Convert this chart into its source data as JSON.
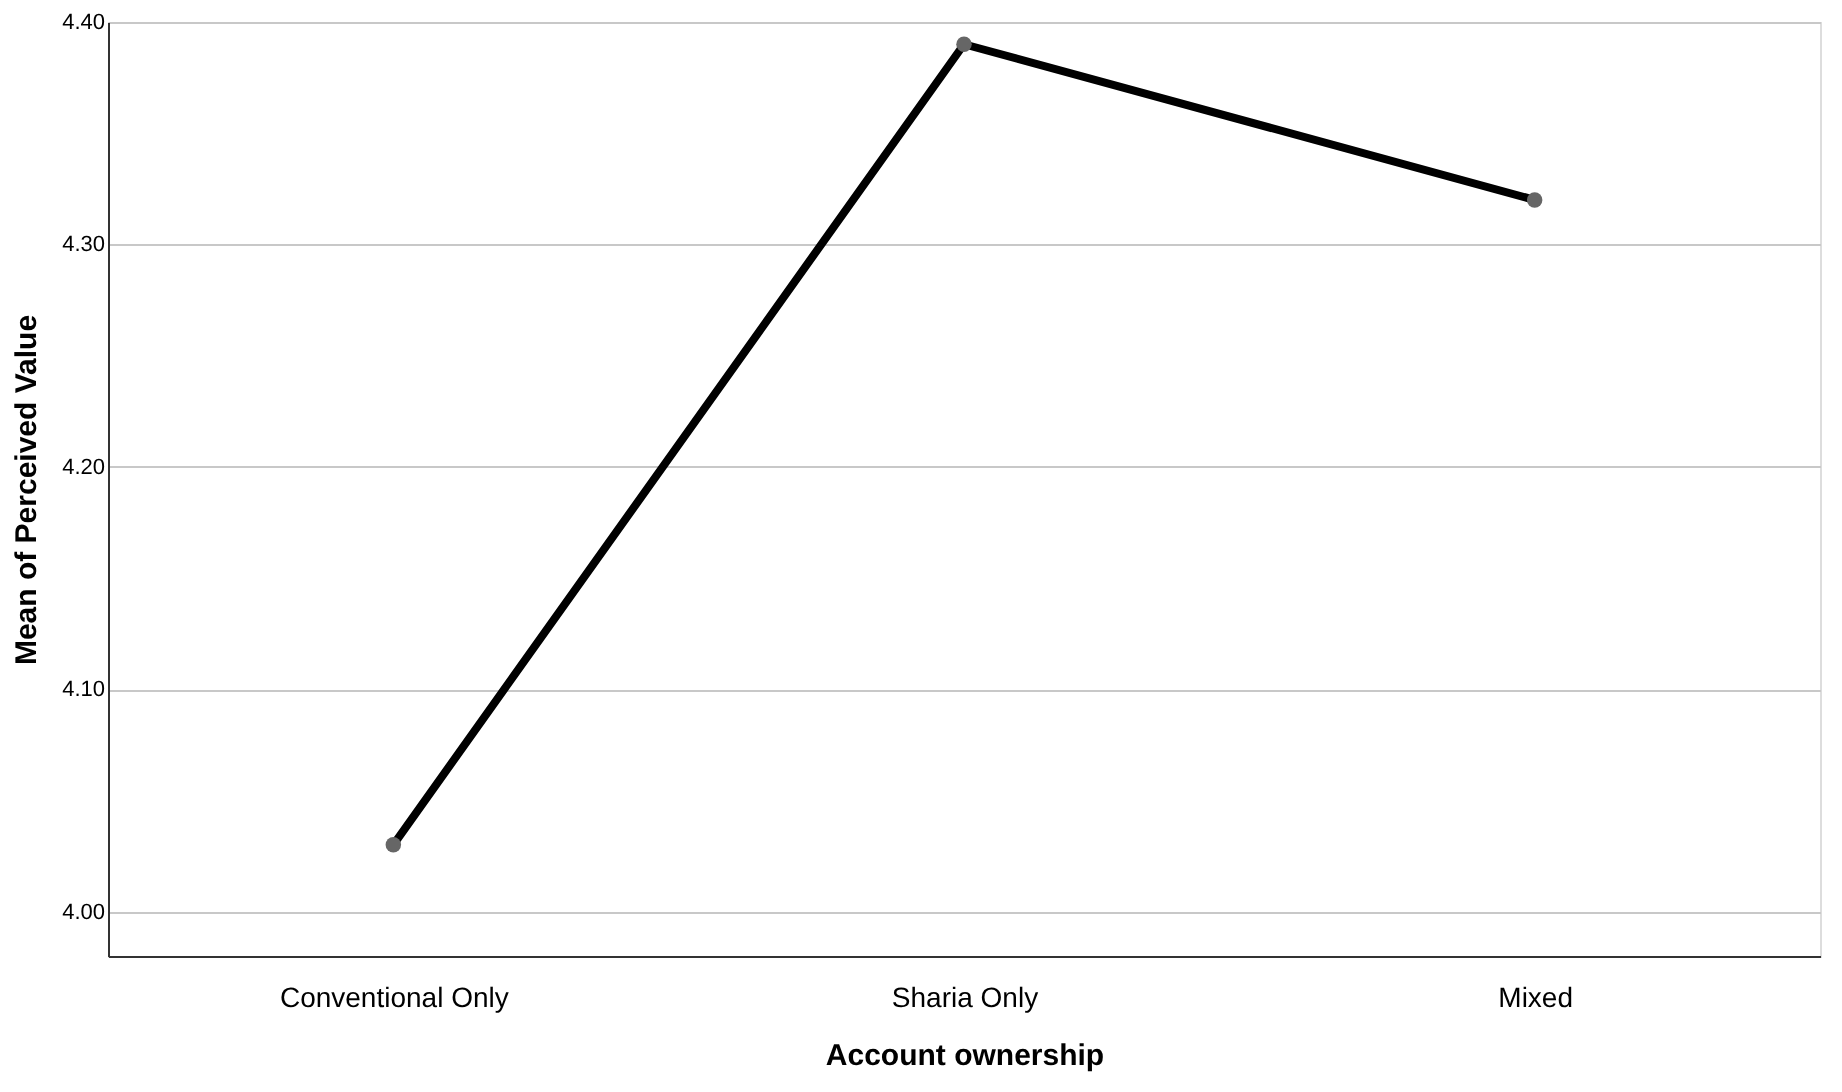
{
  "chart_data": {
    "type": "line",
    "xlabel": "Account ownership",
    "ylabel": "Mean of Perceived Value",
    "categories": [
      "Conventional Only",
      "Sharia Only",
      "Mixed"
    ],
    "series": [
      {
        "color": "#000000",
        "values": [
          4.03,
          4.39,
          4.32
        ]
      }
    ],
    "ylim": [
      3.98,
      4.4
    ],
    "yticks": [
      {
        "value": 4.0,
        "label": "4.00"
      },
      {
        "value": 4.1,
        "label": "4.10"
      },
      {
        "value": 4.2,
        "label": "4.20"
      },
      {
        "value": 4.3,
        "label": "4.30"
      },
      {
        "value": 4.4,
        "label": "4.40"
      }
    ],
    "grid": "y",
    "marker": "circle",
    "line_style": "solid"
  }
}
